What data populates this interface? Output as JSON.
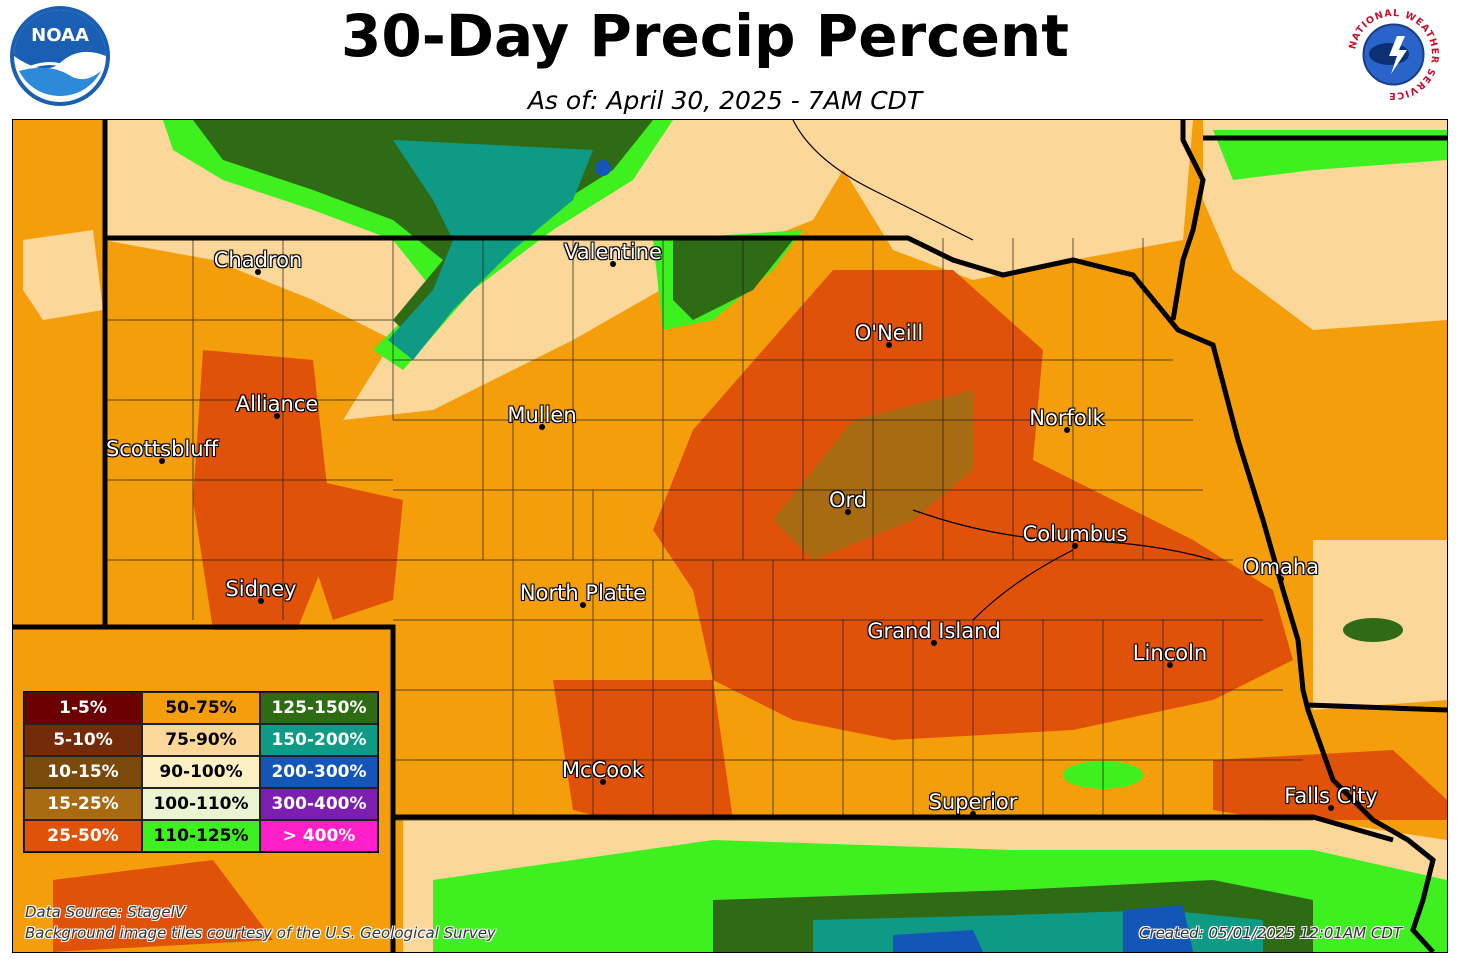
{
  "header": {
    "title": "30-Day Precip Percent",
    "subtitle": "As of: April 30, 2025 - 7AM CDT",
    "left_logo": {
      "icon": "noaa-logo-icon",
      "text": "NOAA"
    },
    "right_logo": {
      "icon": "nws-logo-icon",
      "text": "NATIONAL WEATHER SERVICE"
    }
  },
  "cities": [
    {
      "name": "Chadron"
    },
    {
      "name": "Valentine"
    },
    {
      "name": "O'Neill"
    },
    {
      "name": "Alliance"
    },
    {
      "name": "Mullen"
    },
    {
      "name": "Norfolk"
    },
    {
      "name": "Scottsbluff"
    },
    {
      "name": "Ord"
    },
    {
      "name": "Columbus"
    },
    {
      "name": "Omaha"
    },
    {
      "name": "Sidney"
    },
    {
      "name": "North Platte"
    },
    {
      "name": "Grand Island"
    },
    {
      "name": "Lincoln"
    },
    {
      "name": "McCook"
    },
    {
      "name": "Superior"
    },
    {
      "name": "Falls City"
    }
  ],
  "legend": {
    "items": [
      {
        "label": "1-5%",
        "color": "#6b0000",
        "text_color": "#ffffff"
      },
      {
        "label": "50-75%",
        "color": "#f59e0b",
        "text_color": "#000000"
      },
      {
        "label": "125-150%",
        "color": "#2e6b14",
        "text_color": "#ffffff"
      },
      {
        "label": "5-10%",
        "color": "#732b0a",
        "text_color": "#ffffff"
      },
      {
        "label": "75-90%",
        "color": "#fcd79a",
        "text_color": "#000000"
      },
      {
        "label": "150-200%",
        "color": "#0f9a86",
        "text_color": "#ffffff"
      },
      {
        "label": "10-15%",
        "color": "#7a4a0c",
        "text_color": "#ffffff"
      },
      {
        "label": "90-100%",
        "color": "#fdf0c4",
        "text_color": "#000000"
      },
      {
        "label": "200-300%",
        "color": "#1455b8",
        "text_color": "#ffffff"
      },
      {
        "label": "15-25%",
        "color": "#a86b12",
        "text_color": "#ffffff"
      },
      {
        "label": "100-110%",
        "color": "#eaf4d2",
        "text_color": "#000000"
      },
      {
        "label": "300-400%",
        "color": "#7c1fb0",
        "text_color": "#ffffff"
      },
      {
        "label": "25-50%",
        "color": "#e0520a",
        "text_color": "#ffffff"
      },
      {
        "label": "110-125%",
        "color": "#3ef01f",
        "text_color": "#000000"
      },
      {
        "label": "> 400%",
        "color": "#ff1fc8",
        "text_color": "#ffffff"
      }
    ]
  },
  "footer": {
    "source": "Data Source: StageIV",
    "background_credit": "Background image tiles courtesy of the U.S. Geological Survey",
    "created": "Created: 05/01/2025 12:01AM CDT"
  }
}
